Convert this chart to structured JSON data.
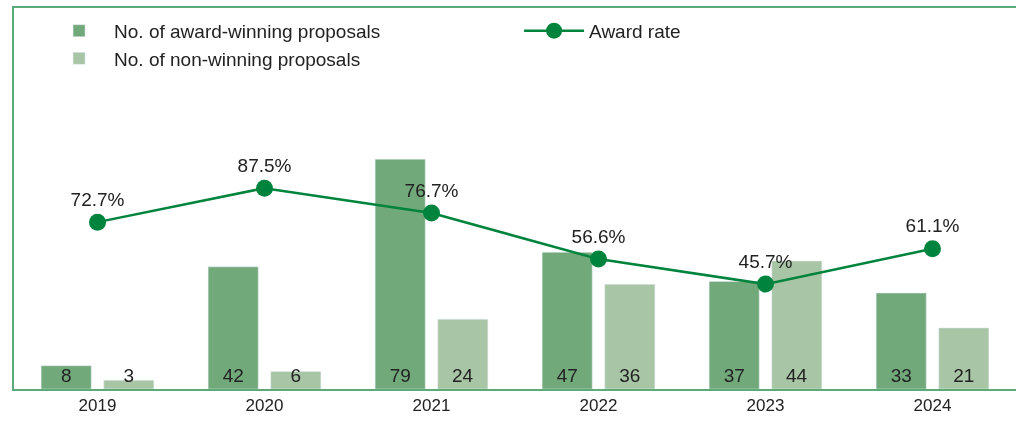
{
  "chart_data": {
    "type": "bar",
    "categories": [
      "2019",
      "2020",
      "2021",
      "2022",
      "2023",
      "2024"
    ],
    "series": [
      {
        "name": "No. of award-winning proposals",
        "color": "#72a97a",
        "values": [
          8,
          42,
          79,
          47,
          37,
          33
        ],
        "value_labels": [
          "8",
          "42",
          "79",
          "47",
          "37",
          "33"
        ]
      },
      {
        "name": "No. of non-winning proposals",
        "color": "#a8c6a5",
        "values": [
          3,
          6,
          24,
          36,
          44,
          21
        ],
        "value_labels": [
          "3",
          "6",
          "24",
          "36",
          "44",
          "21"
        ]
      },
      {
        "name": "Award rate",
        "type": "line",
        "axis": "y2",
        "color": "#00843d",
        "marker": "circle",
        "values": [
          72.7,
          87.5,
          76.7,
          56.6,
          45.7,
          61.1
        ],
        "value_labels": [
          "72.7%",
          "87.5%",
          "76.7%",
          "56.6%",
          "45.7%",
          "61.1%"
        ]
      }
    ],
    "ylim": [
      0,
      131
    ],
    "y2lim": [
      0,
      166
    ],
    "tick_labels": "x",
    "legend": "top left"
  }
}
